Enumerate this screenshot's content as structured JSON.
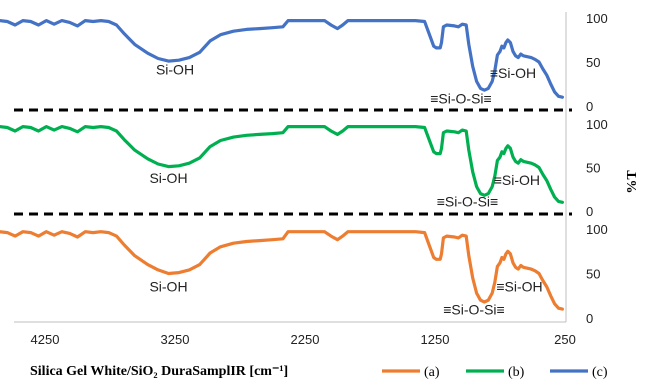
{
  "chart_data": {
    "type": "line",
    "xlabel": "Silica Gel White/SiO₂ DuraSamplIR [cm⁻¹]",
    "ylabel": "%T",
    "xlim": [
      4800,
      250
    ],
    "x_ticks": [
      "4250",
      "3250",
      "2250",
      "1250",
      "250"
    ],
    "y_ticks": [
      "0",
      "50",
      "100"
    ],
    "panels": [
      {
        "series_index": 2,
        "annotations": [
          {
            "text": "Si-OH",
            "x": 3250,
            "y": 36
          },
          {
            "text": "≡Si-O-Si≡",
            "x": 1050,
            "y": 3
          },
          {
            "text": "≡Si-OH",
            "x": 650,
            "y": 32
          }
        ]
      },
      {
        "series_index": 1,
        "annotations": [
          {
            "text": "Si-OH",
            "x": 3300,
            "y": 32
          },
          {
            "text": "≡Si-O-Si≡",
            "x": 1000,
            "y": 5
          },
          {
            "text": "≡Si-OH",
            "x": 620,
            "y": 30
          }
        ]
      },
      {
        "series_index": 0,
        "annotations": [
          {
            "text": "Si-OH",
            "x": 3300,
            "y": 30
          },
          {
            "text": "≡Si-O-Si≡",
            "x": 950,
            "y": 4
          },
          {
            "text": "≡Si-OH",
            "x": 600,
            "y": 30
          }
        ]
      }
    ],
    "series": [
      {
        "name": "(a)",
        "color": "#ED7D31",
        "points": [
          [
            4780,
            92
          ],
          [
            4720,
            97
          ],
          [
            4660,
            94
          ],
          [
            4600,
            97
          ],
          [
            4540,
            96
          ],
          [
            4480,
            92
          ],
          [
            4420,
            97
          ],
          [
            4360,
            96
          ],
          [
            4300,
            92
          ],
          [
            4240,
            97
          ],
          [
            4180,
            93
          ],
          [
            4120,
            97
          ],
          [
            4060,
            95
          ],
          [
            4000,
            91
          ],
          [
            3940,
            97
          ],
          [
            3880,
            96
          ],
          [
            3820,
            97
          ],
          [
            3760,
            96
          ],
          [
            3700,
            92
          ],
          [
            3640,
            82
          ],
          [
            3560,
            70
          ],
          [
            3460,
            60
          ],
          [
            3380,
            54
          ],
          [
            3300,
            50
          ],
          [
            3220,
            51
          ],
          [
            3140,
            54
          ],
          [
            3060,
            60
          ],
          [
            2980,
            73
          ],
          [
            2900,
            80
          ],
          [
            2800,
            84
          ],
          [
            2700,
            86
          ],
          [
            2600,
            87
          ],
          [
            2500,
            88
          ],
          [
            2420,
            89
          ],
          [
            2380,
            97
          ],
          [
            2300,
            97
          ],
          [
            2200,
            97
          ],
          [
            2100,
            97
          ],
          [
            2050,
            92
          ],
          [
            2000,
            88
          ],
          [
            1960,
            92
          ],
          [
            1920,
            97
          ],
          [
            1800,
            97
          ],
          [
            1700,
            97
          ],
          [
            1600,
            97
          ],
          [
            1500,
            97
          ],
          [
            1400,
            97
          ],
          [
            1330,
            96
          ],
          [
            1290,
            80
          ],
          [
            1260,
            68
          ],
          [
            1240,
            66
          ],
          [
            1210,
            66
          ],
          [
            1200,
            72
          ],
          [
            1185,
            90
          ],
          [
            1160,
            92
          ],
          [
            1100,
            91
          ],
          [
            1070,
            90
          ],
          [
            1040,
            93
          ],
          [
            1010,
            92
          ],
          [
            990,
            70
          ],
          [
            960,
            45
          ],
          [
            930,
            28
          ],
          [
            900,
            20
          ],
          [
            870,
            18
          ],
          [
            840,
            20
          ],
          [
            810,
            28
          ],
          [
            790,
            40
          ],
          [
            770,
            58
          ],
          [
            750,
            62
          ],
          [
            735,
            68
          ],
          [
            720,
            66
          ],
          [
            705,
            72
          ],
          [
            690,
            75
          ],
          [
            670,
            72
          ],
          [
            650,
            62
          ],
          [
            630,
            57
          ],
          [
            610,
            55
          ],
          [
            590,
            59
          ],
          [
            570,
            57
          ],
          [
            540,
            56
          ],
          [
            510,
            55
          ],
          [
            480,
            53
          ],
          [
            450,
            50
          ],
          [
            420,
            42
          ],
          [
            390,
            35
          ],
          [
            360,
            25
          ],
          [
            330,
            16
          ],
          [
            300,
            11
          ],
          [
            270,
            10
          ]
        ]
      },
      {
        "name": "(b)",
        "color": "#00B050",
        "points": [
          [
            4780,
            92
          ],
          [
            4720,
            97
          ],
          [
            4660,
            94
          ],
          [
            4600,
            97
          ],
          [
            4540,
            96
          ],
          [
            4480,
            92
          ],
          [
            4420,
            97
          ],
          [
            4360,
            96
          ],
          [
            4300,
            92
          ],
          [
            4240,
            97
          ],
          [
            4180,
            93
          ],
          [
            4120,
            97
          ],
          [
            4060,
            95
          ],
          [
            4000,
            91
          ],
          [
            3940,
            97
          ],
          [
            3880,
            96
          ],
          [
            3820,
            97
          ],
          [
            3760,
            96
          ],
          [
            3700,
            92
          ],
          [
            3640,
            82
          ],
          [
            3560,
            70
          ],
          [
            3460,
            60
          ],
          [
            3380,
            54
          ],
          [
            3300,
            51
          ],
          [
            3220,
            52
          ],
          [
            3140,
            55
          ],
          [
            3060,
            61
          ],
          [
            2980,
            74
          ],
          [
            2900,
            81
          ],
          [
            2800,
            85
          ],
          [
            2700,
            87
          ],
          [
            2600,
            88
          ],
          [
            2500,
            89
          ],
          [
            2420,
            90
          ],
          [
            2380,
            97
          ],
          [
            2300,
            97
          ],
          [
            2200,
            97
          ],
          [
            2100,
            97
          ],
          [
            2050,
            92
          ],
          [
            2000,
            88
          ],
          [
            1960,
            92
          ],
          [
            1920,
            97
          ],
          [
            1800,
            97
          ],
          [
            1700,
            97
          ],
          [
            1600,
            97
          ],
          [
            1500,
            97
          ],
          [
            1400,
            97
          ],
          [
            1330,
            96
          ],
          [
            1290,
            80
          ],
          [
            1260,
            68
          ],
          [
            1240,
            66
          ],
          [
            1210,
            66
          ],
          [
            1200,
            72
          ],
          [
            1185,
            90
          ],
          [
            1160,
            92
          ],
          [
            1100,
            91
          ],
          [
            1070,
            90
          ],
          [
            1040,
            93
          ],
          [
            1010,
            92
          ],
          [
            990,
            70
          ],
          [
            960,
            45
          ],
          [
            930,
            28
          ],
          [
            900,
            20
          ],
          [
            870,
            18
          ],
          [
            840,
            20
          ],
          [
            810,
            28
          ],
          [
            790,
            40
          ],
          [
            770,
            58
          ],
          [
            750,
            62
          ],
          [
            735,
            68
          ],
          [
            720,
            66
          ],
          [
            705,
            72
          ],
          [
            690,
            75
          ],
          [
            670,
            72
          ],
          [
            650,
            62
          ],
          [
            630,
            57
          ],
          [
            610,
            55
          ],
          [
            590,
            59
          ],
          [
            570,
            57
          ],
          [
            540,
            56
          ],
          [
            510,
            55
          ],
          [
            480,
            53
          ],
          [
            450,
            50
          ],
          [
            420,
            42
          ],
          [
            390,
            35
          ],
          [
            360,
            25
          ],
          [
            330,
            16
          ],
          [
            300,
            11
          ],
          [
            270,
            10
          ]
        ]
      },
      {
        "name": "(c)",
        "color": "#4472C4",
        "points": [
          [
            4780,
            92
          ],
          [
            4720,
            97
          ],
          [
            4660,
            94
          ],
          [
            4600,
            97
          ],
          [
            4540,
            96
          ],
          [
            4480,
            92
          ],
          [
            4420,
            97
          ],
          [
            4360,
            96
          ],
          [
            4300,
            92
          ],
          [
            4240,
            97
          ],
          [
            4180,
            93
          ],
          [
            4120,
            97
          ],
          [
            4060,
            95
          ],
          [
            4000,
            91
          ],
          [
            3940,
            97
          ],
          [
            3880,
            96
          ],
          [
            3820,
            97
          ],
          [
            3760,
            96
          ],
          [
            3700,
            92
          ],
          [
            3640,
            82
          ],
          [
            3560,
            70
          ],
          [
            3460,
            60
          ],
          [
            3380,
            54
          ],
          [
            3300,
            51
          ],
          [
            3220,
            52
          ],
          [
            3140,
            55
          ],
          [
            3060,
            61
          ],
          [
            2980,
            74
          ],
          [
            2900,
            81
          ],
          [
            2800,
            85
          ],
          [
            2700,
            87
          ],
          [
            2600,
            88
          ],
          [
            2500,
            89
          ],
          [
            2420,
            90
          ],
          [
            2380,
            97
          ],
          [
            2300,
            97
          ],
          [
            2200,
            97
          ],
          [
            2100,
            97
          ],
          [
            2050,
            92
          ],
          [
            2000,
            88
          ],
          [
            1960,
            92
          ],
          [
            1920,
            97
          ],
          [
            1800,
            97
          ],
          [
            1700,
            97
          ],
          [
            1600,
            97
          ],
          [
            1500,
            97
          ],
          [
            1400,
            97
          ],
          [
            1330,
            96
          ],
          [
            1290,
            80
          ],
          [
            1260,
            68
          ],
          [
            1240,
            66
          ],
          [
            1210,
            66
          ],
          [
            1200,
            72
          ],
          [
            1185,
            90
          ],
          [
            1160,
            92
          ],
          [
            1100,
            91
          ],
          [
            1070,
            90
          ],
          [
            1040,
            93
          ],
          [
            1010,
            92
          ],
          [
            990,
            70
          ],
          [
            960,
            45
          ],
          [
            930,
            28
          ],
          [
            900,
            20
          ],
          [
            870,
            18
          ],
          [
            840,
            20
          ],
          [
            810,
            28
          ],
          [
            790,
            40
          ],
          [
            770,
            58
          ],
          [
            750,
            62
          ],
          [
            735,
            68
          ],
          [
            720,
            66
          ],
          [
            705,
            72
          ],
          [
            690,
            75
          ],
          [
            670,
            72
          ],
          [
            650,
            62
          ],
          [
            630,
            57
          ],
          [
            610,
            55
          ],
          [
            590,
            59
          ],
          [
            570,
            57
          ],
          [
            540,
            56
          ],
          [
            510,
            55
          ],
          [
            480,
            53
          ],
          [
            450,
            50
          ],
          [
            420,
            42
          ],
          [
            390,
            35
          ],
          [
            360,
            25
          ],
          [
            330,
            16
          ],
          [
            300,
            11
          ],
          [
            270,
            10
          ]
        ]
      }
    ],
    "grid": false,
    "legend_position": "bottom-right",
    "separators": "dashed"
  }
}
